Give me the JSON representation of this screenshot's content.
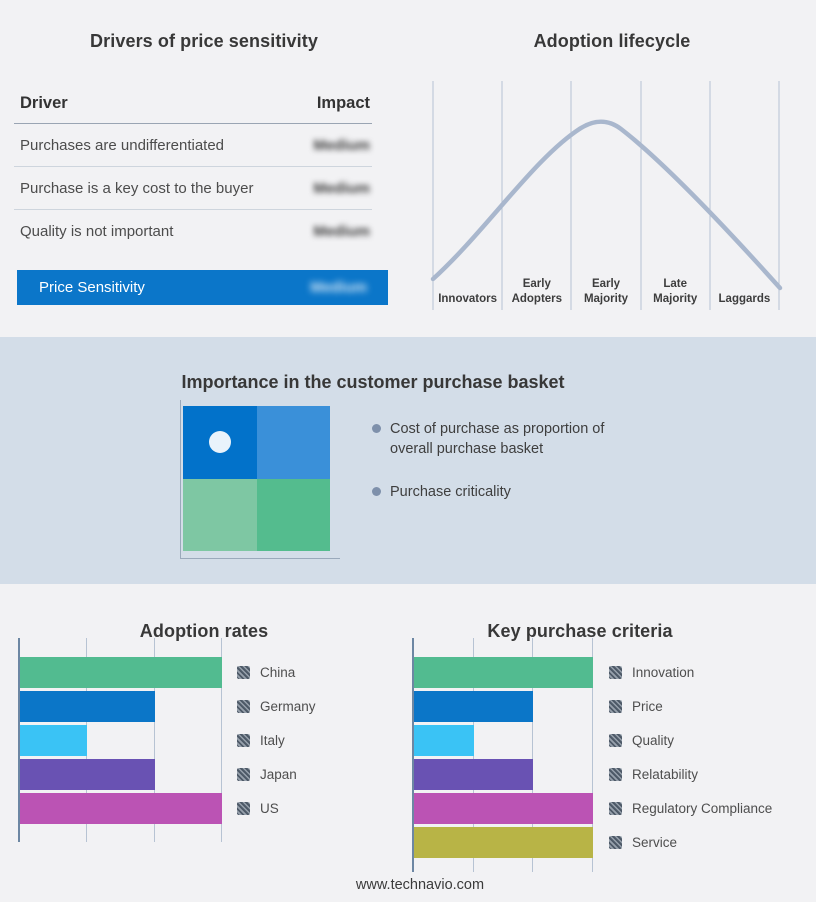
{
  "colors": {
    "page_background": "#f2f2f4",
    "band_background": "#d3dde8",
    "accent_blue": "#0b76c9",
    "curve": "#a9b7cd",
    "gridline": "#b7c3d3",
    "axis": "#6d87a3",
    "bullet_dot": "#7e90ab",
    "bar_green": "#52bb90",
    "bar_blue": "#0b76c8",
    "bar_cyan": "#3ac3f5",
    "bar_purple": "#6952b3",
    "bar_magenta": "#bb53b4",
    "bar_olive": "#b8b446"
  },
  "drivers": {
    "title": "Drivers of price sensitivity",
    "columns": {
      "driver": "Driver",
      "impact": "Impact"
    },
    "rows": [
      {
        "driver": "Purchases are undifferentiated",
        "impact": "Medium",
        "impact_blurred": true
      },
      {
        "driver": "Purchase is a key cost to the buyer",
        "impact": "Medium",
        "impact_blurred": true
      },
      {
        "driver": "Quality is not important",
        "impact": "Medium",
        "impact_blurred": true
      }
    ],
    "summary_row": {
      "label": "Price Sensitivity",
      "impact": "Medium",
      "impact_blurred": true
    }
  },
  "lifecycle": {
    "title": "Adoption lifecycle",
    "stages": [
      "Innovators",
      "Early Adopters",
      "Early Majority",
      "Late Majority",
      "Laggards"
    ]
  },
  "basket": {
    "title": "Importance in the customer purchase basket",
    "bullets": [
      "Cost of purchase as proportion of overall purchase basket",
      "Purchase criticality"
    ],
    "quadrant_colors": {
      "top_left": "#0272ca",
      "top_right": "#3a90d9",
      "bottom_left": "#7ec7a3",
      "bottom_right": "#54bc8e"
    },
    "marker": "white-dot-in-top-left-quadrant"
  },
  "footer": {
    "url": "www.technavio.com"
  },
  "chart_data": [
    {
      "id": "adoption-rates",
      "type": "bar",
      "orientation": "horizontal",
      "title": "Adoption rates",
      "categories": [
        "China",
        "Germany",
        "Italy",
        "Japan",
        "US"
      ],
      "values": [
        3,
        2,
        1,
        2,
        3
      ],
      "xlim": [
        0,
        3
      ],
      "units": "relative gridline units (value axis unlabeled)",
      "xlabel": "",
      "ylabel": "",
      "grid": true,
      "tick_labels_shown": false,
      "legend_position": "right",
      "colors": [
        "#52bb90",
        "#0b76c8",
        "#3ac3f5",
        "#6952b3",
        "#bb53b4"
      ]
    },
    {
      "id": "key-purchase-criteria",
      "type": "bar",
      "orientation": "horizontal",
      "title": "Key purchase criteria",
      "categories": [
        "Innovation",
        "Price",
        "Quality",
        "Relatability",
        "Regulatory Compliance",
        "Service"
      ],
      "values": [
        3,
        2,
        1,
        2,
        3,
        3
      ],
      "xlim": [
        0,
        3
      ],
      "units": "relative gridline units (value axis unlabeled)",
      "xlabel": "",
      "ylabel": "",
      "grid": true,
      "tick_labels_shown": false,
      "legend_position": "right",
      "colors": [
        "#52bb90",
        "#0b76c8",
        "#3ac3f5",
        "#6952b3",
        "#bb53b4",
        "#b8b446"
      ]
    },
    {
      "id": "adoption-lifecycle-curve",
      "type": "line",
      "title": "Adoption lifecycle",
      "x_categories": [
        "Innovators",
        "Early Adopters",
        "Early Majority",
        "Late Majority",
        "Laggards"
      ],
      "description": "Qualitative bell curve rising from Innovators, peaking over Early Majority, declining through Laggards",
      "peak_stage": "Early Majority",
      "grid": true,
      "legend_position": "none"
    }
  ]
}
